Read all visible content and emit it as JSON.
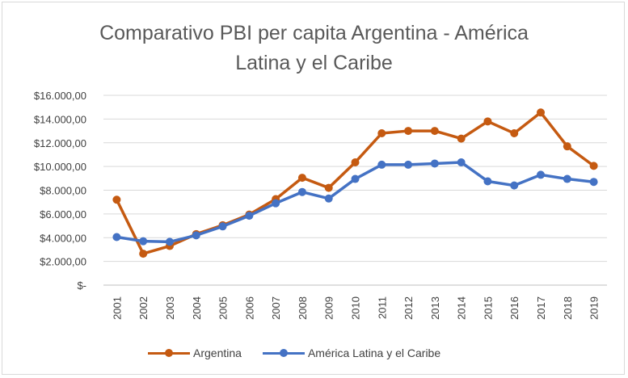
{
  "chart_data": {
    "type": "line",
    "title_lines": [
      "Comparativo PBI per capita Argentina - América",
      "Latina y el Caribe"
    ],
    "xlabel": "",
    "ylabel": "",
    "categories": [
      "2001",
      "2002",
      "2003",
      "2004",
      "2005",
      "2006",
      "2007",
      "2008",
      "2009",
      "2010",
      "2011",
      "2012",
      "2013",
      "2014",
      "2015",
      "2016",
      "2017",
      "2018",
      "2019"
    ],
    "ylim": [
      0,
      16000
    ],
    "y_ticks": [
      0,
      2000,
      4000,
      6000,
      8000,
      10000,
      12000,
      14000,
      16000
    ],
    "y_tick_labels": [
      "$-",
      "$2.000,00",
      "$4.000,00",
      "$6.000,00",
      "$8.000,00",
      "$10.000,00",
      "$12.000,00",
      "$14.000,00",
      "$16.000,00"
    ],
    "grid": true,
    "legend_position": "bottom",
    "series": [
      {
        "name": "Argentina",
        "color": "#c55a11",
        "values": [
          7200,
          2650,
          3300,
          4300,
          5050,
          5950,
          7250,
          9050,
          8200,
          10350,
          12800,
          13000,
          13000,
          12350,
          13800,
          12800,
          14550,
          11700,
          10050
        ]
      },
      {
        "name": "América Latina y el Caribe",
        "color": "#4472c4",
        "values": [
          4050,
          3700,
          3650,
          4200,
          4950,
          5850,
          6900,
          7850,
          7300,
          8950,
          10150,
          10150,
          10250,
          10350,
          8750,
          8400,
          9300,
          8950,
          8700
        ]
      }
    ]
  }
}
